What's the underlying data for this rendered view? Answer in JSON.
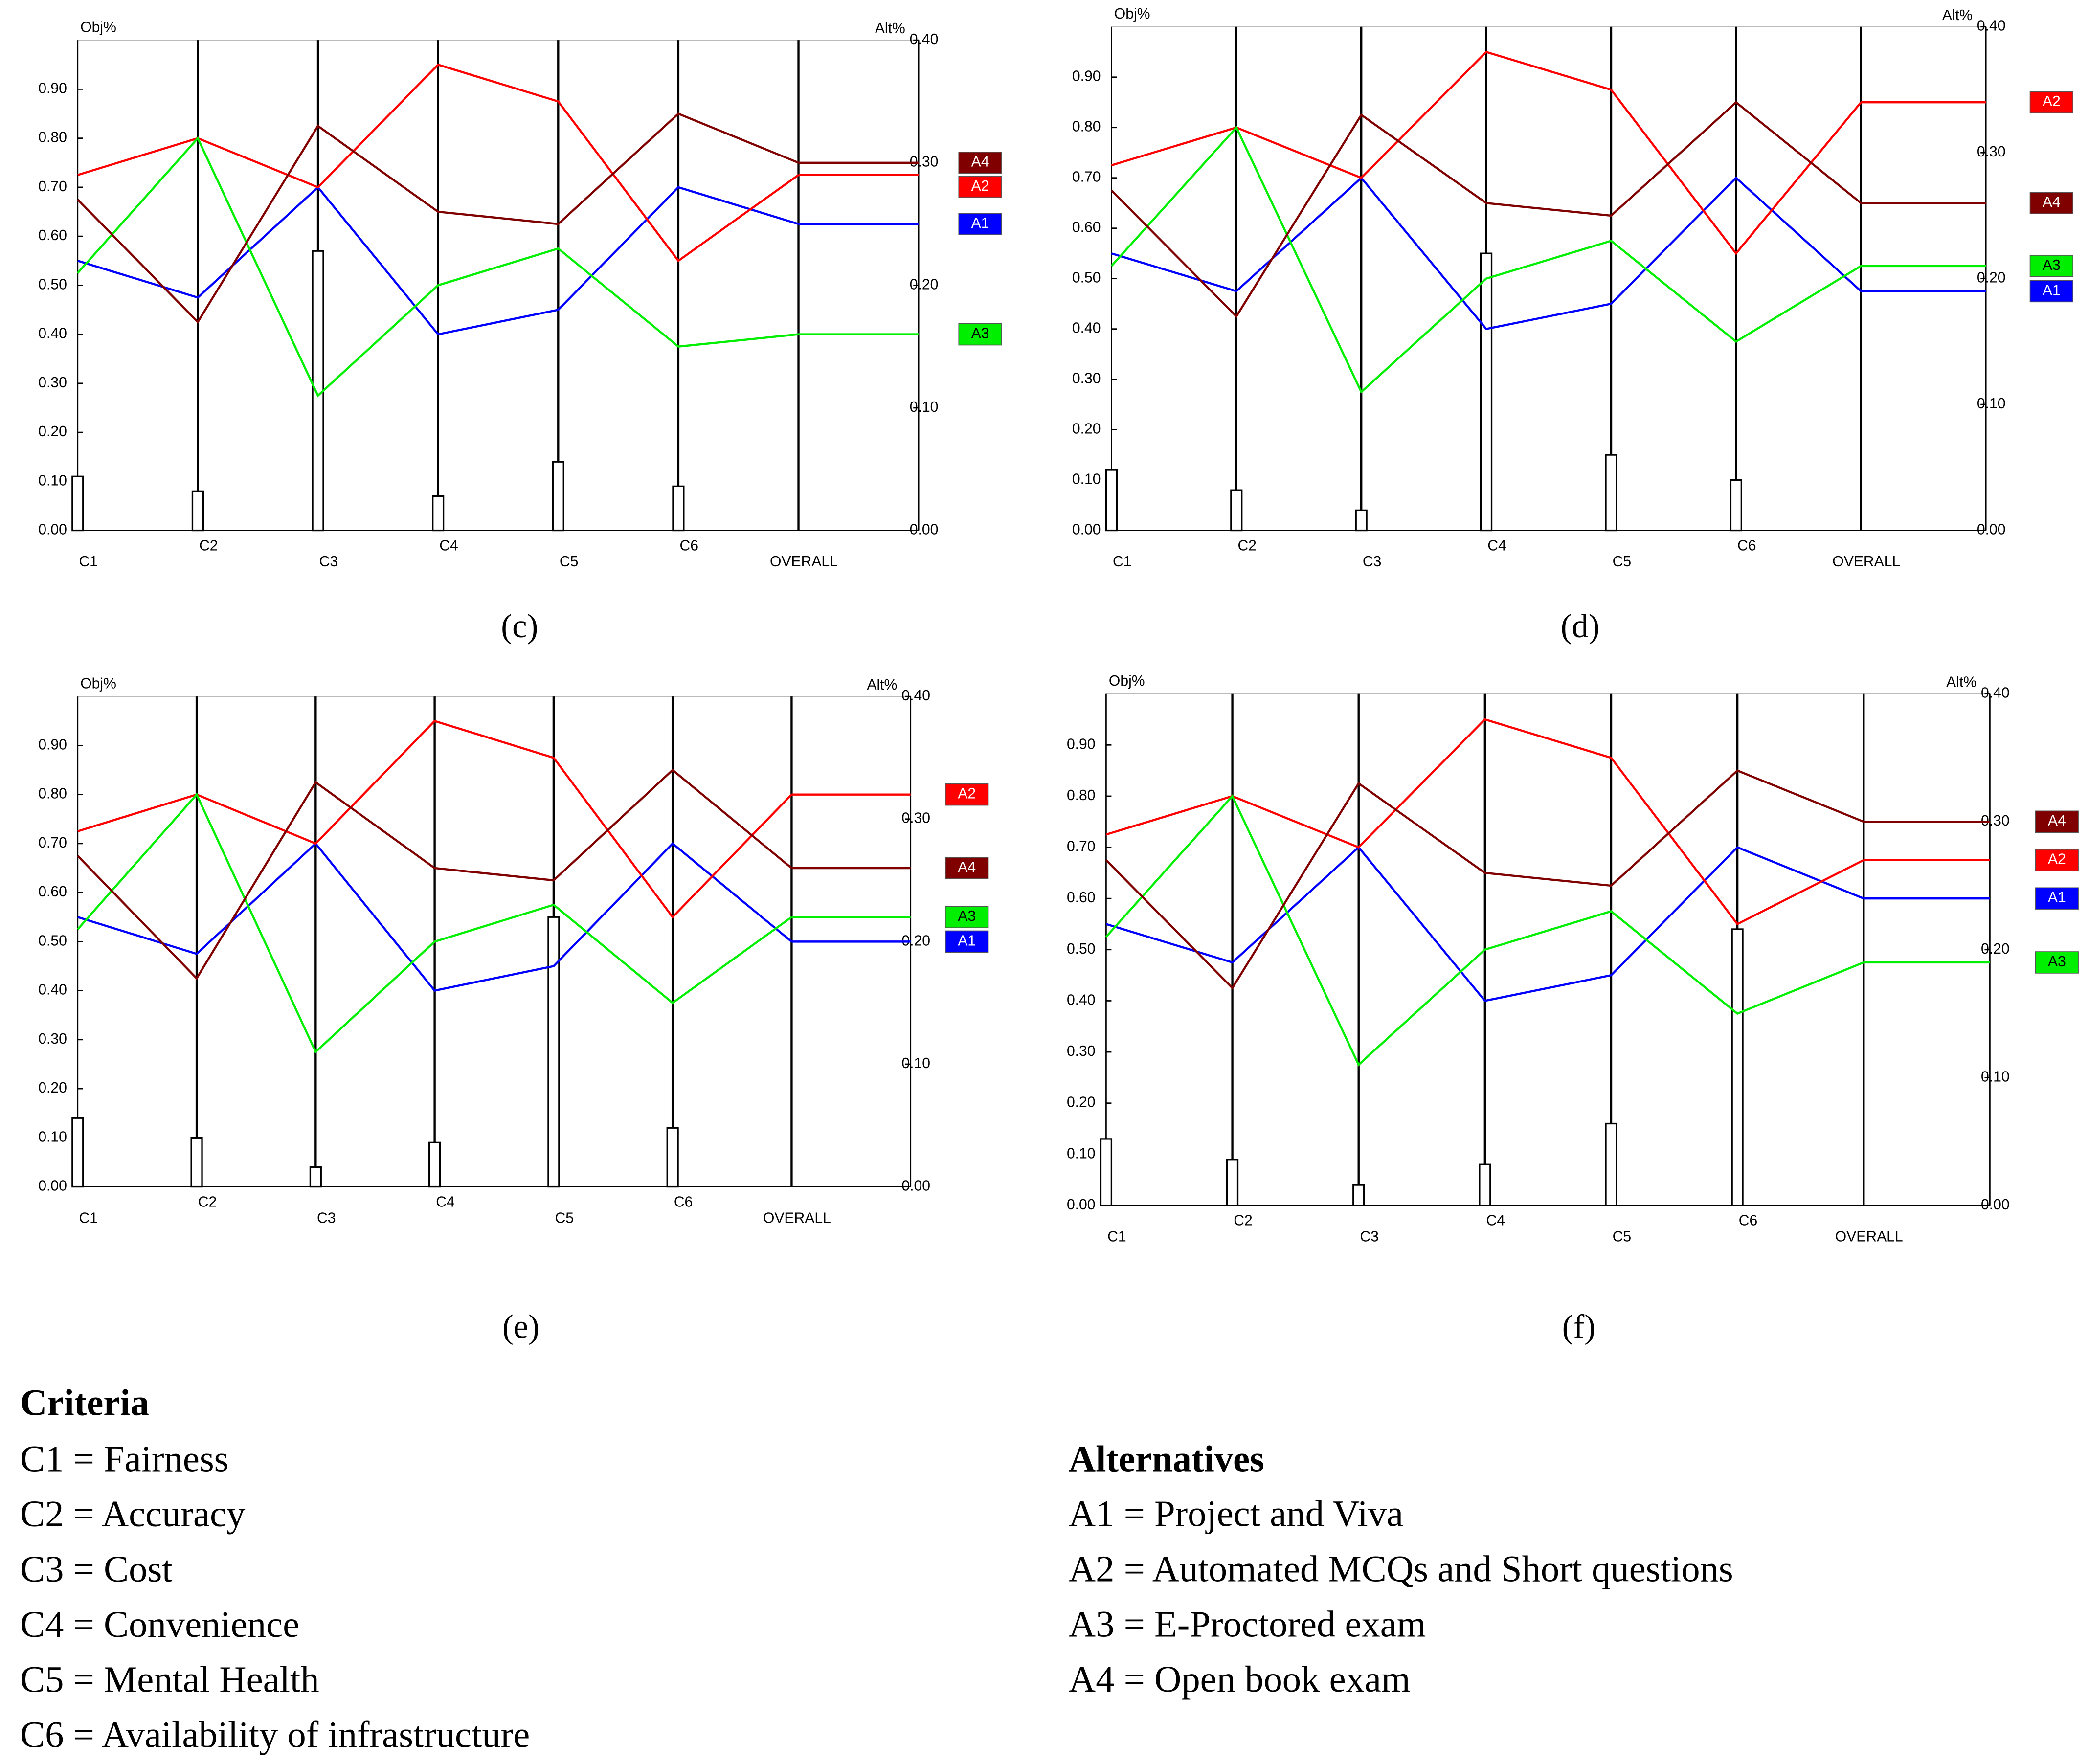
{
  "chart_data": [
    {
      "type": "line",
      "caption": "(c)",
      "ylabel": "Obj%",
      "y2label": "Alt%",
      "categories": [
        "C1",
        "C2",
        "C3",
        "C4",
        "C5",
        "C6",
        "OVERALL"
      ],
      "ylim": [
        0,
        1
      ],
      "yticks": [
        {
          "value": 0,
          "label": "0.00"
        },
        {
          "value": 0.1,
          "label": "0.10"
        },
        {
          "value": 0.2,
          "label": "0.20"
        },
        {
          "value": 0.3,
          "label": "0.30"
        },
        {
          "value": 0.4,
          "label": "0.40"
        },
        {
          "value": 0.5,
          "label": "0.50"
        },
        {
          "value": 0.6,
          "label": "0.60"
        },
        {
          "value": 0.7,
          "label": "0.70"
        },
        {
          "value": 0.8,
          "label": "0.80"
        },
        {
          "value": 0.9,
          "label": "0.90"
        }
      ],
      "y2lim": [
        0,
        0.4
      ],
      "y2ticks": [
        {
          "value": 0,
          "label": "0.00"
        },
        {
          "value": 0.1,
          "label": "0.10"
        },
        {
          "value": 0.2,
          "label": "0.20"
        },
        {
          "value": 0.3,
          "label": "0.30"
        },
        {
          "value": 0.4,
          "label": "0.40"
        }
      ],
      "bars": {
        "values": [
          0.11,
          0.08,
          0.57,
          0.07,
          0.14,
          0.09,
          null
        ]
      },
      "series": [
        {
          "name": "A1",
          "color": "#0000ff",
          "axis": "y2",
          "values": [
            0.22,
            0.19,
            0.28,
            0.16,
            0.18,
            0.28,
            0.25
          ]
        },
        {
          "name": "A2",
          "color": "#ff0000",
          "axis": "y2",
          "values": [
            0.29,
            0.32,
            0.28,
            0.38,
            0.35,
            0.22,
            0.29
          ]
        },
        {
          "name": "A3",
          "color": "#00ee00",
          "axis": "y2",
          "values": [
            0.21,
            0.32,
            0.11,
            0.2,
            0.23,
            0.15,
            0.16
          ]
        },
        {
          "name": "A4",
          "color": "#800000",
          "axis": "y2",
          "values": [
            0.27,
            0.17,
            0.33,
            0.26,
            0.25,
            0.34,
            0.3
          ]
        }
      ]
    },
    {
      "type": "line",
      "caption": "(d)",
      "ylabel": "Obj%",
      "y2label": "Alt%",
      "categories": [
        "C1",
        "C2",
        "C3",
        "C4",
        "C5",
        "C6",
        "OVERALL"
      ],
      "ylim": [
        0,
        1
      ],
      "yticks": [
        {
          "value": 0,
          "label": "0.00"
        },
        {
          "value": 0.1,
          "label": "0.10"
        },
        {
          "value": 0.2,
          "label": "0.20"
        },
        {
          "value": 0.3,
          "label": "0.30"
        },
        {
          "value": 0.4,
          "label": "0.40"
        },
        {
          "value": 0.5,
          "label": "0.50"
        },
        {
          "value": 0.6,
          "label": "0.60"
        },
        {
          "value": 0.7,
          "label": "0.70"
        },
        {
          "value": 0.8,
          "label": "0.80"
        },
        {
          "value": 0.9,
          "label": "0.90"
        }
      ],
      "y2lim": [
        0,
        0.4
      ],
      "y2ticks": [
        {
          "value": 0,
          "label": "0.00"
        },
        {
          "value": 0.1,
          "label": "0.10"
        },
        {
          "value": 0.2,
          "label": "0.20"
        },
        {
          "value": 0.3,
          "label": "0.30"
        },
        {
          "value": 0.4,
          "label": "0.40"
        }
      ],
      "bars": {
        "values": [
          0.12,
          0.08,
          0.04,
          0.55,
          0.15,
          0.1,
          null
        ]
      },
      "series": [
        {
          "name": "A1",
          "color": "#0000ff",
          "axis": "y2",
          "values": [
            0.22,
            0.19,
            0.28,
            0.16,
            0.18,
            0.28,
            0.19
          ]
        },
        {
          "name": "A2",
          "color": "#ff0000",
          "axis": "y2",
          "values": [
            0.29,
            0.32,
            0.28,
            0.38,
            0.35,
            0.22,
            0.34
          ]
        },
        {
          "name": "A3",
          "color": "#00ee00",
          "axis": "y2",
          "values": [
            0.21,
            0.32,
            0.11,
            0.2,
            0.23,
            0.15,
            0.21
          ]
        },
        {
          "name": "A4",
          "color": "#800000",
          "axis": "y2",
          "values": [
            0.27,
            0.17,
            0.33,
            0.26,
            0.25,
            0.34,
            0.26
          ]
        }
      ]
    },
    {
      "type": "line",
      "caption": "(e)",
      "ylabel": "Obj%",
      "y2label": "Alt%",
      "categories": [
        "C1",
        "C2",
        "C3",
        "C4",
        "C5",
        "C6",
        "OVERALL"
      ],
      "ylim": [
        0,
        1
      ],
      "yticks": [
        {
          "value": 0,
          "label": "0.00"
        },
        {
          "value": 0.1,
          "label": "0.10"
        },
        {
          "value": 0.2,
          "label": "0.20"
        },
        {
          "value": 0.3,
          "label": "0.30"
        },
        {
          "value": 0.4,
          "label": "0.40"
        },
        {
          "value": 0.5,
          "label": "0.50"
        },
        {
          "value": 0.6,
          "label": "0.60"
        },
        {
          "value": 0.7,
          "label": "0.70"
        },
        {
          "value": 0.8,
          "label": "0.80"
        },
        {
          "value": 0.9,
          "label": "0.90"
        }
      ],
      "y2lim": [
        0,
        0.4
      ],
      "y2ticks": [
        {
          "value": 0,
          "label": "0.00"
        },
        {
          "value": 0.1,
          "label": "0.10"
        },
        {
          "value": 0.2,
          "label": "0.20"
        },
        {
          "value": 0.3,
          "label": "0.30"
        },
        {
          "value": 0.4,
          "label": "0.40"
        }
      ],
      "bars": {
        "values": [
          0.14,
          0.1,
          0.04,
          0.09,
          0.55,
          0.12,
          null
        ]
      },
      "series": [
        {
          "name": "A1",
          "color": "#0000ff",
          "axis": "y2",
          "values": [
            0.22,
            0.19,
            0.28,
            0.16,
            0.18,
            0.28,
            0.2
          ]
        },
        {
          "name": "A2",
          "color": "#ff0000",
          "axis": "y2",
          "values": [
            0.29,
            0.32,
            0.28,
            0.38,
            0.35,
            0.22,
            0.32
          ]
        },
        {
          "name": "A3",
          "color": "#00ee00",
          "axis": "y2",
          "values": [
            0.21,
            0.32,
            0.11,
            0.2,
            0.23,
            0.15,
            0.22
          ]
        },
        {
          "name": "A4",
          "color": "#800000",
          "axis": "y2",
          "values": [
            0.27,
            0.17,
            0.33,
            0.26,
            0.25,
            0.34,
            0.26
          ]
        }
      ]
    },
    {
      "type": "line",
      "caption": "(f)",
      "ylabel": "Obj%",
      "y2label": "Alt%",
      "categories": [
        "C1",
        "C2",
        "C3",
        "C4",
        "C5",
        "C6",
        "OVERALL"
      ],
      "ylim": [
        0,
        1
      ],
      "yticks": [
        {
          "value": 0,
          "label": "0.00"
        },
        {
          "value": 0.1,
          "label": "0.10"
        },
        {
          "value": 0.2,
          "label": "0.20"
        },
        {
          "value": 0.3,
          "label": "0.30"
        },
        {
          "value": 0.4,
          "label": "0.40"
        },
        {
          "value": 0.5,
          "label": "0.50"
        },
        {
          "value": 0.6,
          "label": "0.60"
        },
        {
          "value": 0.7,
          "label": "0.70"
        },
        {
          "value": 0.8,
          "label": "0.80"
        },
        {
          "value": 0.9,
          "label": "0.90"
        }
      ],
      "y2lim": [
        0,
        0.4
      ],
      "y2ticks": [
        {
          "value": 0,
          "label": "0.00"
        },
        {
          "value": 0.1,
          "label": "0.10"
        },
        {
          "value": 0.2,
          "label": "0.20"
        },
        {
          "value": 0.3,
          "label": "0.30"
        },
        {
          "value": 0.4,
          "label": "0.40"
        }
      ],
      "bars": {
        "values": [
          0.13,
          0.09,
          0.04,
          0.08,
          0.16,
          0.54,
          null
        ]
      },
      "series": [
        {
          "name": "A1",
          "color": "#0000ff",
          "axis": "y2",
          "values": [
            0.22,
            0.19,
            0.28,
            0.16,
            0.18,
            0.28,
            0.24
          ]
        },
        {
          "name": "A2",
          "color": "#ff0000",
          "axis": "y2",
          "values": [
            0.29,
            0.32,
            0.28,
            0.38,
            0.35,
            0.22,
            0.27
          ]
        },
        {
          "name": "A3",
          "color": "#00ee00",
          "axis": "y2",
          "values": [
            0.21,
            0.32,
            0.11,
            0.2,
            0.23,
            0.15,
            0.19
          ]
        },
        {
          "name": "A4",
          "color": "#800000",
          "axis": "y2",
          "values": [
            0.27,
            0.17,
            0.33,
            0.26,
            0.25,
            0.34,
            0.3
          ]
        }
      ]
    }
  ],
  "notes": {
    "criteria_title": "Criteria",
    "criteria": [
      "C1 = Fairness",
      "C2 = Accuracy",
      "C3 = Cost",
      "C4 = Convenience",
      "C5 = Mental Health",
      "C6 = Availability of infrastructure"
    ],
    "alternatives_title": "Alternatives",
    "alternatives": [
      "A1 = Project and Viva",
      "A2 = Automated MCQs and Short questions",
      "A3 = E-Proctored exam",
      "A4 = Open book exam"
    ]
  }
}
